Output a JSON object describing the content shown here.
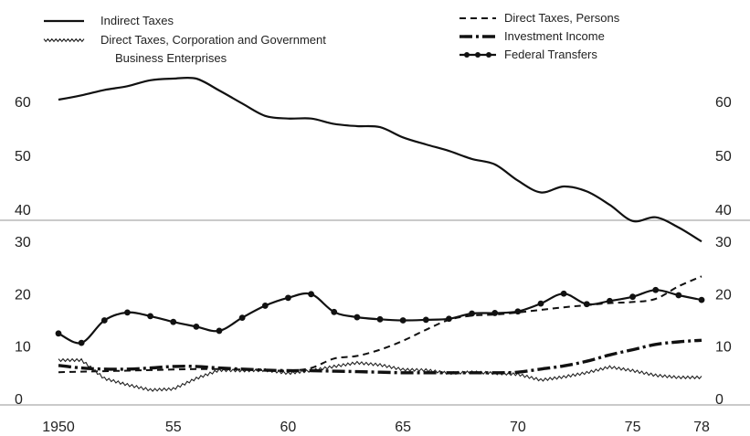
{
  "chart_data": {
    "type": "line",
    "title": "",
    "xlabel": "",
    "ylabel": "",
    "x_ticks": [
      "1950",
      "55",
      "60",
      "65",
      "70",
      "75",
      "78"
    ],
    "x_tick_years": [
      1950,
      1955,
      1960,
      1965,
      1970,
      1975,
      1978
    ],
    "xlim": [
      1950,
      1978
    ],
    "upper_panel": {
      "y_ticks": [
        "60",
        "50",
        "40"
      ],
      "ylim": [
        35,
        68
      ],
      "series": [
        {
          "name": "Indirect Taxes",
          "style": "solid",
          "x": [
            1950,
            1951,
            1952,
            1953,
            1954,
            1955,
            1956,
            1957,
            1958,
            1959,
            1960,
            1961,
            1962,
            1963,
            1964,
            1965,
            1966,
            1967,
            1968,
            1969,
            1970,
            1971,
            1972,
            1973,
            1974,
            1975,
            1976,
            1977,
            1978
          ],
          "values": [
            60.5,
            61.3,
            62.3,
            63.0,
            64.1,
            64.4,
            64.4,
            62.2,
            59.8,
            57.5,
            57.0,
            57.0,
            56.0,
            55.6,
            55.4,
            53.5,
            52.2,
            51.0,
            49.5,
            48.5,
            45.5,
            43.3,
            44.4,
            43.5,
            41.0,
            38.0,
            38.7,
            36.8,
            34.2
          ]
        }
      ]
    },
    "lower_panel": {
      "y_ticks": [
        "30",
        "20",
        "10",
        "0"
      ],
      "ylim": [
        -1,
        33
      ],
      "series": [
        {
          "name": "Direct Taxes, Persons",
          "style": "dashed",
          "x": [
            1950,
            1951,
            1952,
            1953,
            1954,
            1955,
            1956,
            1957,
            1958,
            1959,
            1960,
            1961,
            1962,
            1963,
            1964,
            1965,
            1966,
            1967,
            1968,
            1969,
            1970,
            1971,
            1972,
            1973,
            1974,
            1975,
            1976,
            1977,
            1978
          ],
          "values": [
            5.2,
            5.3,
            5.4,
            5.5,
            5.6,
            5.7,
            5.8,
            5.8,
            5.7,
            5.6,
            5.5,
            6.0,
            7.8,
            8.3,
            9.5,
            11.2,
            13.3,
            15.2,
            16.0,
            16.2,
            16.6,
            17.1,
            17.6,
            18.0,
            18.4,
            18.6,
            19.2,
            21.6,
            23.5
          ]
        },
        {
          "name": "Direct Taxes, Corporation and Government Business Enterprises",
          "style": "wavy",
          "x": [
            1950,
            1951,
            1952,
            1953,
            1954,
            1955,
            1956,
            1957,
            1958,
            1959,
            1960,
            1961,
            1962,
            1963,
            1964,
            1965,
            1966,
            1967,
            1968,
            1969,
            1970,
            1971,
            1972,
            1973,
            1974,
            1975,
            1976,
            1977,
            1978
          ],
          "values": [
            7.5,
            7.5,
            4.0,
            2.8,
            1.8,
            2.0,
            4.0,
            5.6,
            5.5,
            5.6,
            5.0,
            5.5,
            6.3,
            7.0,
            6.6,
            5.7,
            5.6,
            5.0,
            5.2,
            5.0,
            4.8,
            3.7,
            4.3,
            5.1,
            6.2,
            5.5,
            4.6,
            4.2,
            4.2
          ]
        },
        {
          "name": "Investment Income",
          "style": "dash-dot",
          "x": [
            1950,
            1951,
            1952,
            1953,
            1954,
            1955,
            1956,
            1957,
            1958,
            1959,
            1960,
            1961,
            1962,
            1963,
            1964,
            1965,
            1966,
            1967,
            1968,
            1969,
            1970,
            1971,
            1972,
            1973,
            1974,
            1975,
            1976,
            1977,
            1978
          ],
          "values": [
            6.5,
            6.0,
            5.8,
            5.8,
            6.0,
            6.3,
            6.3,
            6.0,
            5.8,
            5.6,
            5.5,
            5.5,
            5.4,
            5.3,
            5.2,
            5.1,
            5.1,
            5.1,
            5.1,
            5.1,
            5.2,
            5.8,
            6.4,
            7.3,
            8.5,
            9.5,
            10.5,
            11.0,
            11.3
          ]
        },
        {
          "name": "Federal Transfers",
          "style": "solid-dots",
          "x": [
            1950,
            1951,
            1952,
            1953,
            1954,
            1955,
            1956,
            1957,
            1958,
            1959,
            1960,
            1961,
            1962,
            1963,
            1964,
            1965,
            1966,
            1967,
            1968,
            1969,
            1970,
            1971,
            1972,
            1973,
            1974,
            1975,
            1976,
            1977,
            1978
          ],
          "values": [
            12.6,
            10.8,
            15.1,
            16.6,
            15.9,
            14.8,
            13.9,
            13.1,
            15.6,
            17.9,
            19.4,
            20.1,
            16.7,
            15.7,
            15.3,
            15.1,
            15.2,
            15.4,
            16.4,
            16.5,
            16.8,
            18.3,
            20.2,
            18.2,
            18.8,
            19.6,
            20.9,
            19.9,
            19.0
          ]
        }
      ]
    }
  }
}
